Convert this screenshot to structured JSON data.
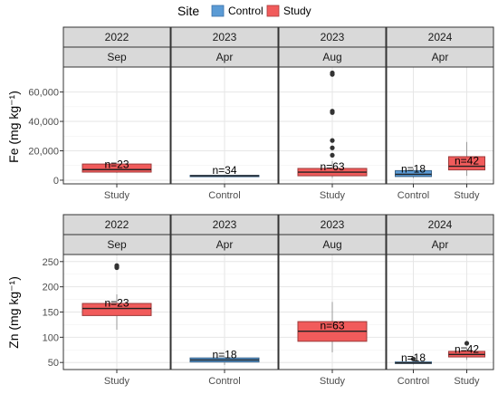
{
  "legend": {
    "title": "Site",
    "items": [
      {
        "label": "Control",
        "color": "#5B9BD5"
      },
      {
        "label": "Study",
        "color": "#F15B5B"
      }
    ]
  },
  "colors": {
    "panel_border": "#333333",
    "strip_fill": "#d9d9d9",
    "grid": "#e6e6e6",
    "median": "#222222",
    "outlier": "#333333"
  },
  "chart_data": [
    {
      "type": "box",
      "ylabel": "Fe (mg kg⁻¹)",
      "ylim": [
        -2500,
        77000
      ],
      "yticks": [
        0,
        20000,
        40000,
        60000
      ],
      "ytick_labels": [
        "0",
        "20,000",
        "40,000",
        "60,000"
      ],
      "grid": true,
      "panels": [
        {
          "strip_top": "2022",
          "strip_bottom": "Sep",
          "categories": [
            "Study"
          ],
          "boxes": [
            {
              "x": "Study",
              "site": "Study",
              "min": 5000,
              "q1": 5500,
              "median": 7200,
              "q3": 11000,
              "max": 11000,
              "outliers": [],
              "label": "n=23"
            }
          ]
        },
        {
          "strip_top": "2023",
          "strip_bottom": "Apr",
          "categories": [
            "Control"
          ],
          "boxes": [
            {
              "x": "Control",
              "site": "Control",
              "min": 2400,
              "q1": 2800,
              "median": 3000,
              "q3": 3300,
              "max": 3500,
              "outliers": [],
              "label": "n=34"
            }
          ]
        },
        {
          "strip_top": "2023",
          "strip_bottom": "Aug",
          "categories": [
            "Study"
          ],
          "boxes": [
            {
              "x": "Study",
              "site": "Study",
              "min": 1500,
              "q1": 3000,
              "median": 5500,
              "q3": 8000,
              "max": 13000,
              "outliers": [
                17000,
                22000,
                27000,
                46000,
                47000,
                72000,
                73000
              ],
              "label": "n=63"
            }
          ]
        },
        {
          "strip_top": "2024",
          "strip_bottom": "Apr",
          "categories": [
            "Control",
            "Study"
          ],
          "boxes": [
            {
              "x": "Control",
              "site": "Control",
              "min": 1500,
              "q1": 2500,
              "median": 4000,
              "q3": 6500,
              "max": 8000,
              "outliers": [],
              "label": "n=18"
            },
            {
              "x": "Study",
              "site": "Study",
              "min": 3000,
              "q1": 7000,
              "median": 9500,
              "q3": 16000,
              "max": 26000,
              "outliers": [],
              "label": "n=42"
            }
          ]
        }
      ]
    },
    {
      "type": "box",
      "ylabel": "Zn (mg kg⁻¹)",
      "ylim": [
        36,
        264
      ],
      "yticks": [
        50,
        100,
        150,
        200,
        250
      ],
      "ytick_labels": [
        "50",
        "100",
        "150",
        "200",
        "250"
      ],
      "grid": true,
      "panels": [
        {
          "strip_top": "2022",
          "strip_bottom": "Sep",
          "categories": [
            "Study"
          ],
          "boxes": [
            {
              "x": "Study",
              "site": "Study",
              "min": 115,
              "q1": 143,
              "median": 157,
              "q3": 167,
              "max": 185,
              "outliers": [
                238,
                240,
                242
              ],
              "label": "n=23"
            }
          ]
        },
        {
          "strip_top": "2023",
          "strip_bottom": "Apr",
          "categories": [
            "Control"
          ],
          "boxes": [
            {
              "x": "Control",
              "site": "Control",
              "min": 45,
              "q1": 51,
              "median": 55,
              "q3": 59,
              "max": 62,
              "outliers": [],
              "label": "n=18"
            }
          ]
        },
        {
          "strip_top": "2023",
          "strip_bottom": "Aug",
          "categories": [
            "Study"
          ],
          "boxes": [
            {
              "x": "Study",
              "site": "Study",
              "min": 70,
              "q1": 92,
              "median": 112,
              "q3": 131,
              "max": 170,
              "outliers": [],
              "label": "n=63"
            }
          ]
        },
        {
          "strip_top": "2024",
          "strip_bottom": "Apr",
          "categories": [
            "Control",
            "Study"
          ],
          "boxes": [
            {
              "x": "Control",
              "site": "Control",
              "min": 46,
              "q1": 48,
              "median": 49,
              "q3": 51,
              "max": 53,
              "outliers": [
                57
              ],
              "label": "n=18"
            },
            {
              "x": "Study",
              "site": "Study",
              "min": 55,
              "q1": 61,
              "median": 66,
              "q3": 72,
              "max": 80,
              "outliers": [
                88
              ],
              "label": "n=42"
            }
          ]
        }
      ]
    }
  ]
}
